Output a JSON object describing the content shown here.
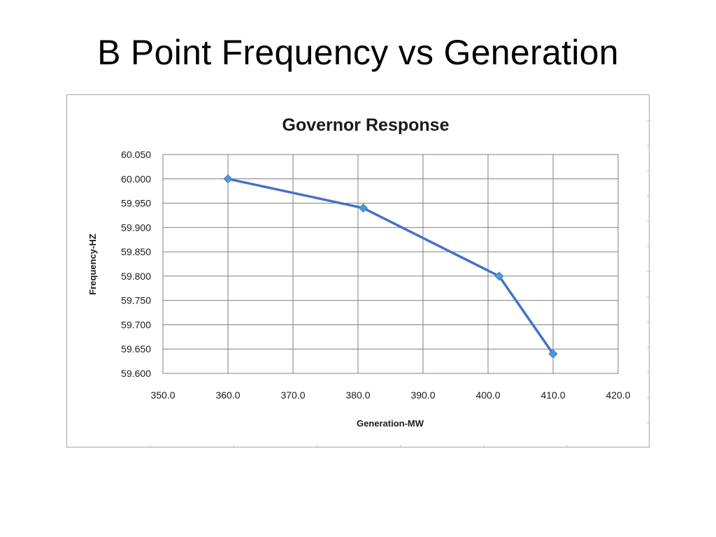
{
  "slide": {
    "title": "B Point Frequency vs Generation"
  },
  "chart_data": {
    "type": "scatter",
    "title": "Governor Response",
    "xlabel": "Generation-MW",
    "ylabel": "Frequency-HZ",
    "xlim": [
      350,
      420
    ],
    "ylim": [
      59.6,
      60.05
    ],
    "x_ticks": [
      "350.0",
      "360.0",
      "370.0",
      "380.0",
      "390.0",
      "400.0",
      "410.0",
      "420.0"
    ],
    "y_ticks": [
      "60.050",
      "60.000",
      "59.950",
      "59.900",
      "59.850",
      "59.800",
      "59.750",
      "59.700",
      "59.650",
      "59.600"
    ],
    "grid": true,
    "legend": "none",
    "series": [
      {
        "points": [
          {
            "x": 360.0,
            "y": 60.0
          },
          {
            "x": 380.8,
            "y": 59.94
          },
          {
            "x": 401.7,
            "y": 59.8
          },
          {
            "x": 410.0,
            "y": 59.64
          }
        ],
        "marker": "diamond",
        "line": "straight",
        "color": "#4472c4",
        "marker_color": "#4a9bd4"
      }
    ],
    "colors": {
      "grid": "#7f7f7f",
      "plot_border": "#808080",
      "frame_border": "#a6a6a6"
    }
  }
}
